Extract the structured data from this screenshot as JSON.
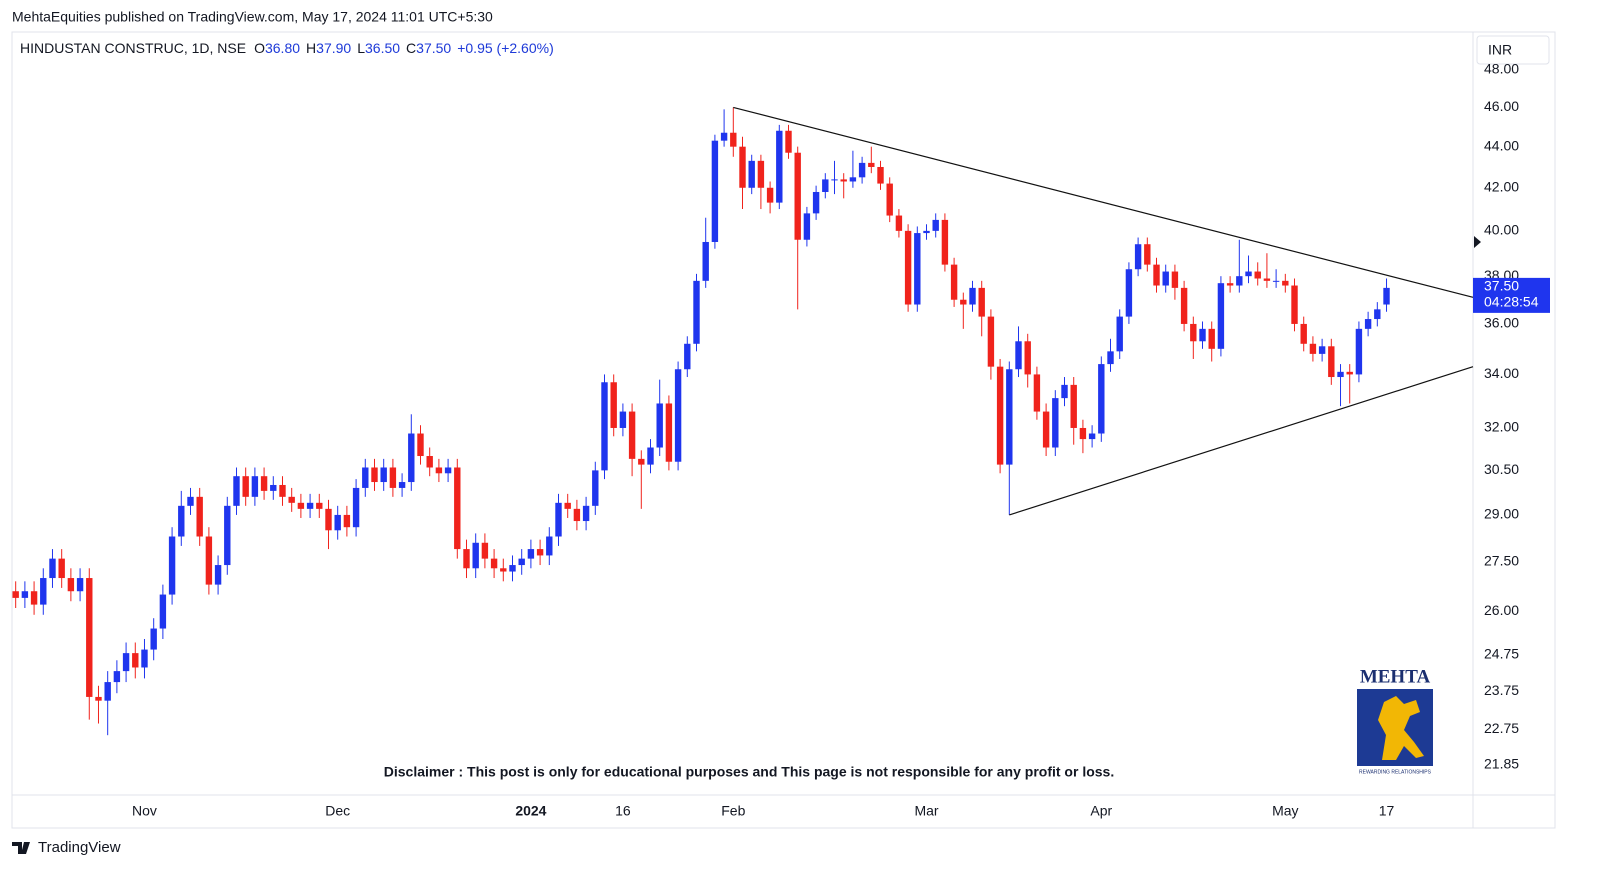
{
  "published": "MehtaEquities published on TradingView.com, May 17, 2024 11:01 UTC+5:30",
  "brand": "TradingView",
  "currency": "INR",
  "disclaimer": "Disclaimer : This post is only for educational purposes and This page is not responsible for any profit or loss.",
  "logo": {
    "name": "MEHTA",
    "tagline": "REWARDING RELATIONSHIPS"
  },
  "chart_data": {
    "type": "candlestick",
    "symbol": "HINDUSTAN CONSTRUC, 1D, NSE",
    "ohlc_header": [
      {
        "key": "O",
        "value": "36.80"
      },
      {
        "key": "H",
        "value": "37.90"
      },
      {
        "key": "L",
        "value": "36.50"
      },
      {
        "key": "C",
        "value": "37.50"
      }
    ],
    "change": "+0.95 (+2.60%)",
    "price_tag": {
      "price": "37.50",
      "countdown": "04:28:54"
    },
    "up_color": "#1f35ee",
    "down_color": "#f0231c",
    "log_scale": true,
    "grid": false,
    "xlim": [
      -0.4,
      158.4
    ],
    "xticks": [
      {
        "value": 14,
        "label": "Nov"
      },
      {
        "value": 35,
        "label": "Dec"
      },
      {
        "value": 56,
        "label": "2024",
        "bold": true
      },
      {
        "value": 66,
        "label": "16"
      },
      {
        "value": 78,
        "label": "Feb"
      },
      {
        "value": 99,
        "label": "Mar"
      },
      {
        "value": 118,
        "label": "Apr"
      },
      {
        "value": 138,
        "label": "May"
      },
      {
        "value": 149,
        "label": "17"
      }
    ],
    "ylim": [
      21.12,
      50.1
    ],
    "yticks": [
      {
        "value": 48,
        "label": "48.00"
      },
      {
        "value": 46,
        "label": "46.00"
      },
      {
        "value": 44,
        "label": "44.00"
      },
      {
        "value": 42,
        "label": "42.00"
      },
      {
        "value": 40,
        "label": "40.00"
      },
      {
        "value": 38,
        "label": "38.00"
      },
      {
        "value": 36,
        "label": "36.00"
      },
      {
        "value": 34,
        "label": "34.00"
      },
      {
        "value": 32,
        "label": "32.00"
      },
      {
        "value": 30.5,
        "label": "30.50"
      },
      {
        "value": 29,
        "label": "29.00"
      },
      {
        "value": 27.5,
        "label": "27.50"
      },
      {
        "value": 26,
        "label": "26.00"
      },
      {
        "value": 24.75,
        "label": "24.75"
      },
      {
        "value": 23.75,
        "label": "23.75"
      },
      {
        "value": 22.75,
        "label": "22.75"
      },
      {
        "value": 21.85,
        "label": "21.85"
      }
    ],
    "open": [
      26.6,
      26.4,
      26.6,
      26.2,
      27.0,
      27.6,
      27.0,
      26.6,
      27.0,
      23.6,
      23.5,
      24.0,
      24.3,
      24.8,
      24.4,
      24.9,
      25.5,
      26.5,
      28.3,
      29.3,
      29.6,
      28.3,
      26.8,
      27.4,
      29.3,
      30.3,
      29.6,
      30.3,
      29.8,
      30.0,
      29.6,
      29.4,
      29.2,
      29.4,
      29.2,
      28.5,
      29.0,
      28.6,
      29.9,
      30.6,
      30.1,
      30.6,
      29.9,
      30.1,
      31.8,
      31.0,
      30.6,
      30.4,
      30.6,
      27.9,
      27.3,
      28.1,
      27.6,
      27.3,
      27.2,
      27.4,
      27.6,
      27.9,
      27.7,
      28.3,
      29.4,
      29.2,
      28.8,
      29.3,
      30.5,
      33.7,
      32.0,
      32.6,
      30.9,
      30.7,
      31.3,
      32.9,
      30.8,
      34.2,
      35.2,
      37.8,
      39.5,
      44.3,
      44.7,
      44.0,
      42.0,
      43.3,
      42.0,
      41.3,
      44.8,
      43.7,
      39.6,
      40.8,
      41.8,
      42.4,
      42.4,
      42.3,
      42.5,
      43.2,
      43.0,
      42.2,
      40.7,
      40.0,
      36.8,
      39.9,
      40.0,
      40.5,
      38.5,
      37.0,
      36.8,
      37.5,
      36.3,
      34.3,
      30.7,
      34.2,
      35.3,
      34.0,
      32.6,
      31.3,
      33.1,
      33.6,
      32.0,
      31.6,
      31.8,
      34.4,
      34.9,
      36.3,
      38.3,
      39.4,
      38.5,
      37.6,
      38.2,
      37.5,
      36.0,
      35.3,
      35.8,
      35.0,
      37.7,
      37.6,
      38.0,
      38.2,
      37.9,
      37.8,
      37.8,
      37.6,
      36.0,
      35.2,
      34.8,
      35.1,
      33.9,
      34.1,
      34.0,
      35.8,
      36.2,
      36.8
    ],
    "high": [
      26.9,
      26.9,
      26.9,
      27.3,
      27.9,
      27.9,
      27.3,
      27.3,
      27.3,
      23.9,
      24.3,
      24.6,
      25.1,
      25.1,
      25.2,
      25.8,
      26.8,
      28.6,
      29.8,
      29.9,
      29.9,
      28.6,
      27.7,
      29.6,
      30.6,
      30.6,
      30.6,
      30.6,
      30.3,
      30.3,
      29.9,
      29.7,
      29.7,
      29.7,
      29.5,
      29.3,
      29.3,
      30.2,
      30.9,
      30.9,
      30.9,
      30.9,
      30.4,
      32.5,
      32.1,
      31.3,
      30.9,
      30.9,
      30.9,
      28.2,
      28.4,
      28.4,
      27.9,
      27.6,
      27.7,
      27.9,
      28.2,
      28.2,
      28.6,
      29.7,
      29.7,
      29.5,
      29.6,
      30.8,
      34.0,
      34.0,
      32.9,
      32.9,
      31.2,
      31.6,
      33.8,
      33.2,
      34.5,
      35.5,
      38.1,
      40.6,
      44.6,
      45.9,
      46.0,
      44.5,
      43.6,
      43.6,
      42.3,
      45.1,
      45.1,
      44.0,
      41.1,
      42.1,
      42.7,
      43.3,
      42.7,
      43.8,
      43.5,
      44.0,
      43.3,
      42.5,
      41.0,
      40.3,
      40.2,
      40.3,
      40.8,
      40.8,
      38.8,
      37.3,
      37.8,
      37.8,
      36.6,
      34.6,
      34.5,
      35.9,
      35.6,
      34.3,
      32.9,
      33.4,
      33.9,
      33.9,
      32.3,
      32.1,
      34.7,
      35.4,
      36.6,
      38.6,
      39.7,
      39.7,
      38.8,
      38.5,
      38.5,
      37.8,
      36.3,
      36.1,
      36.1,
      38.0,
      38.0,
      39.6,
      38.9,
      38.6,
      39.0,
      38.3,
      38.1,
      37.9,
      36.3,
      35.5,
      35.4,
      35.4,
      34.4,
      34.4,
      36.1,
      36.5,
      36.9,
      37.9
    ],
    "low": [
      26.1,
      26.1,
      25.9,
      25.9,
      26.7,
      26.7,
      26.3,
      26.3,
      23.0,
      22.9,
      22.6,
      23.7,
      24.0,
      24.1,
      24.1,
      24.6,
      25.2,
      26.2,
      28.0,
      29.0,
      28.0,
      26.5,
      26.5,
      27.1,
      29.0,
      29.3,
      29.3,
      29.5,
      29.5,
      29.3,
      29.1,
      28.9,
      28.9,
      28.9,
      27.9,
      28.2,
      28.3,
      28.3,
      29.6,
      29.8,
      29.8,
      29.6,
      29.6,
      29.8,
      30.7,
      30.3,
      30.1,
      30.1,
      27.6,
      27.0,
      27.0,
      27.3,
      27.0,
      26.9,
      26.9,
      27.1,
      27.3,
      27.4,
      27.4,
      28.0,
      28.9,
      28.5,
      28.5,
      29.0,
      30.2,
      31.7,
      31.7,
      30.3,
      29.2,
      30.4,
      31.0,
      30.5,
      30.5,
      33.9,
      34.9,
      37.5,
      39.2,
      44.0,
      43.5,
      41.0,
      41.7,
      41.0,
      40.8,
      41.0,
      43.4,
      36.6,
      39.3,
      40.5,
      41.5,
      41.7,
      41.5,
      42.0,
      42.2,
      42.7,
      41.9,
      40.4,
      39.7,
      36.5,
      36.5,
      39.6,
      39.7,
      38.2,
      36.7,
      35.8,
      36.5,
      35.5,
      33.8,
      30.4,
      29.0,
      33.9,
      33.5,
      32.3,
      31.0,
      31.0,
      32.8,
      31.4,
      31.1,
      31.3,
      31.5,
      34.1,
      34.6,
      36.0,
      38.0,
      38.2,
      37.3,
      37.3,
      37.0,
      35.7,
      34.6,
      35.0,
      34.5,
      34.7,
      37.3,
      37.3,
      37.7,
      37.6,
      37.5,
      37.5,
      37.3,
      35.7,
      34.9,
      34.5,
      34.5,
      33.6,
      32.8,
      32.9,
      33.7,
      35.5,
      35.9,
      36.5
    ],
    "close": [
      26.4,
      26.6,
      26.2,
      27.0,
      27.6,
      27.0,
      26.6,
      27.0,
      23.6,
      23.5,
      24.0,
      24.3,
      24.8,
      24.4,
      24.9,
      25.5,
      26.5,
      28.3,
      29.3,
      29.6,
      28.3,
      26.8,
      27.4,
      29.3,
      30.3,
      29.6,
      30.3,
      29.8,
      30.0,
      29.6,
      29.4,
      29.2,
      29.4,
      29.2,
      28.5,
      29.0,
      28.6,
      29.9,
      30.6,
      30.1,
      30.6,
      29.9,
      30.1,
      31.8,
      31.0,
      30.6,
      30.4,
      30.6,
      27.9,
      27.3,
      28.1,
      27.6,
      27.3,
      27.2,
      27.4,
      27.6,
      27.9,
      27.7,
      28.3,
      29.4,
      29.2,
      28.8,
      29.3,
      30.5,
      33.7,
      32.0,
      32.6,
      30.9,
      30.7,
      31.3,
      32.9,
      30.8,
      34.2,
      35.2,
      37.8,
      39.5,
      44.3,
      44.7,
      44.0,
      42.0,
      43.3,
      42.0,
      41.3,
      44.8,
      43.7,
      39.6,
      40.8,
      41.8,
      42.4,
      42.4,
      42.3,
      42.5,
      43.2,
      43.0,
      42.2,
      40.7,
      40.0,
      36.8,
      39.9,
      40.0,
      40.5,
      38.5,
      37.0,
      36.8,
      37.5,
      36.3,
      34.3,
      30.7,
      34.2,
      35.3,
      34.0,
      32.6,
      31.3,
      33.1,
      33.6,
      32.0,
      31.6,
      31.8,
      34.4,
      34.9,
      36.3,
      38.3,
      39.4,
      38.5,
      37.6,
      38.2,
      37.5,
      36.0,
      35.3,
      35.8,
      35.0,
      37.7,
      37.6,
      38.0,
      38.2,
      37.9,
      37.8,
      37.8,
      37.6,
      36.0,
      35.2,
      34.8,
      35.1,
      33.9,
      34.1,
      34.0,
      35.8,
      36.2,
      36.6,
      37.5
    ],
    "trendlines": [
      {
        "x": [
          78,
          158.4
        ],
        "y": [
          46.0,
          37.1
        ]
      },
      {
        "x": [
          108,
          158.4
        ],
        "y": [
          29.0,
          34.3
        ]
      }
    ],
    "trendline_color": "#111111"
  }
}
